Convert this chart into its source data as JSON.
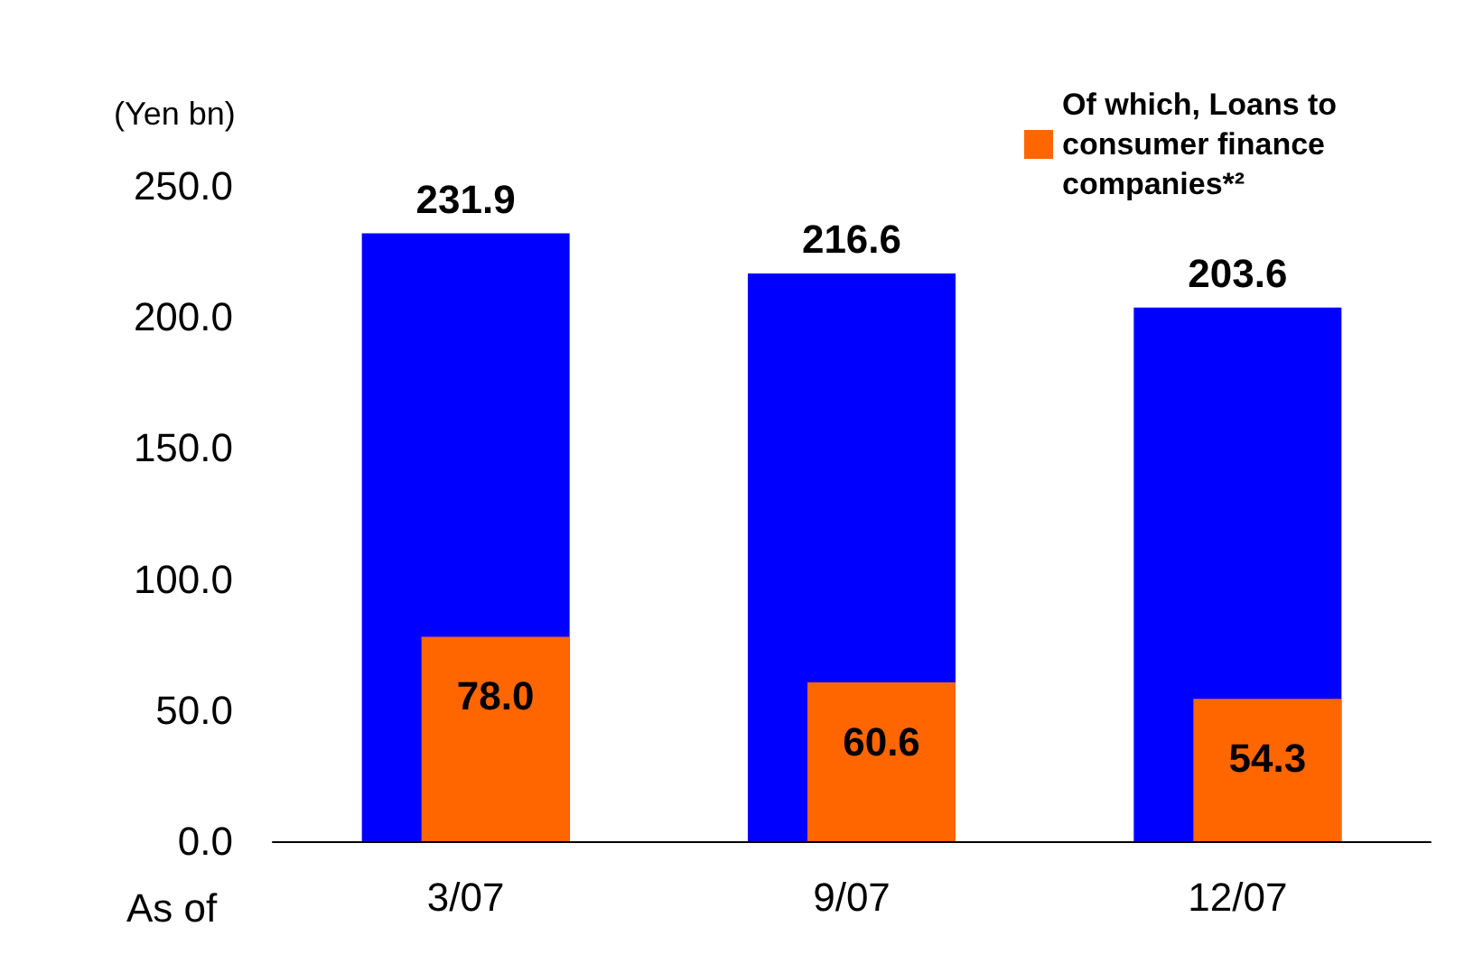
{
  "chart_data": {
    "type": "bar",
    "ylabel": "(Yen bn)",
    "annotations": [
      "As of"
    ],
    "categories": [
      "3/07",
      "9/07",
      "12/07"
    ],
    "series": [
      {
        "color": "#0000ff",
        "values": [
          231.9,
          216.6,
          203.6
        ],
        "value_labels": [
          "231.9",
          "216.6",
          "203.6"
        ]
      },
      {
        "name": "Of which, Loans to consumer finance companies*²",
        "color": "#ff6600",
        "values": [
          78.0,
          60.6,
          54.3
        ],
        "value_labels": [
          "78.0",
          "60.6",
          "54.3"
        ]
      }
    ],
    "ylim": [
      0,
      250
    ],
    "yticks": [
      {
        "value": 0,
        "label": "0.0"
      },
      {
        "value": 50,
        "label": "50.0"
      },
      {
        "value": 100,
        "label": "100.0"
      },
      {
        "value": 150,
        "label": "150.0"
      },
      {
        "value": 200,
        "label": "200.0"
      },
      {
        "value": 250,
        "label": "250.0"
      }
    ],
    "grid": false,
    "legend": "top right"
  }
}
